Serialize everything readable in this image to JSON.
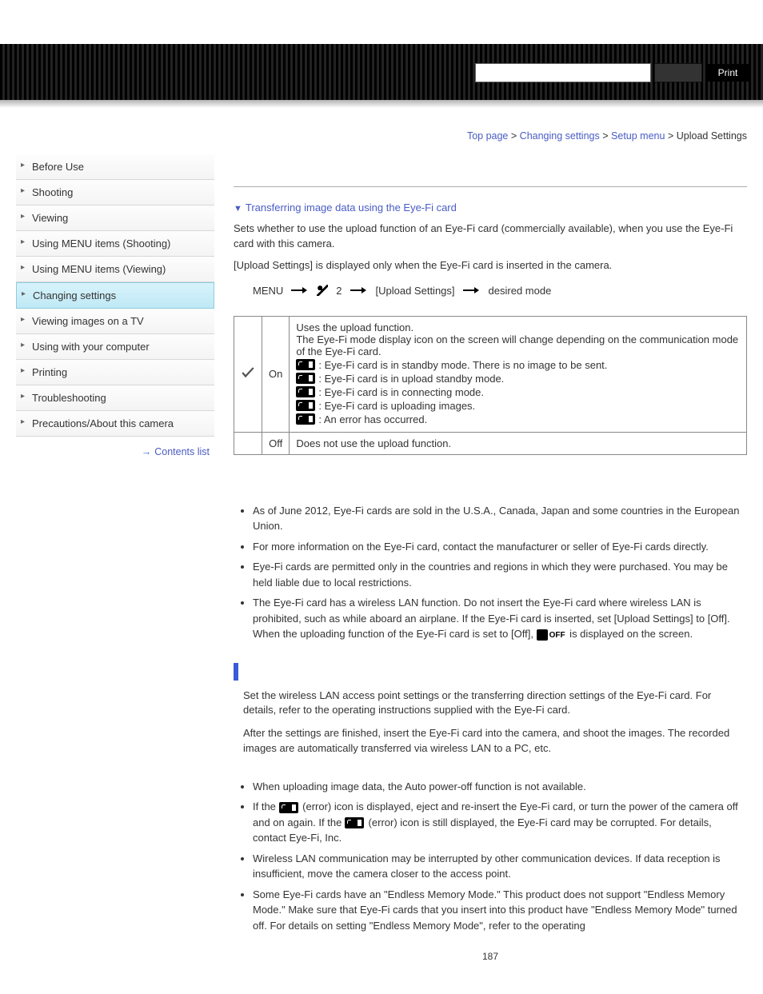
{
  "header": {
    "print_label": "Print"
  },
  "breadcrumb": {
    "top": "Top page",
    "l1": "Changing settings",
    "l2": "Setup menu",
    "cur": "Upload Settings",
    "sep": ">"
  },
  "sidebar": {
    "items": [
      {
        "label": "Before Use"
      },
      {
        "label": "Shooting"
      },
      {
        "label": "Viewing"
      },
      {
        "label": "Using MENU items (Shooting)"
      },
      {
        "label": "Using MENU items (Viewing)"
      },
      {
        "label": "Changing settings"
      },
      {
        "label": "Viewing images on a TV"
      },
      {
        "label": "Using with your computer"
      },
      {
        "label": "Printing"
      },
      {
        "label": "Troubleshooting"
      },
      {
        "label": "Precautions/About this camera"
      }
    ],
    "active_index": 5,
    "contents_link": "Contents list"
  },
  "content": {
    "link1": "Transferring image data using the Eye-Fi card",
    "p1": "Sets whether to use the upload function of an Eye-Fi card (commercially available), when you use the Eye-Fi card with this camera.",
    "p2": "[Upload Settings] is displayed only when the Eye-Fi card is inserted in the camera.",
    "menu_path": {
      "menu": "MENU",
      "setup_num": "2",
      "item": "[Upload Settings]",
      "target": "desired mode"
    },
    "table": {
      "on_label": "On",
      "off_label": "Off",
      "on_l1": "Uses the upload function.",
      "on_l2": "The Eye-Fi mode display icon on the screen will change depending on the communication mode of the Eye-Fi card.",
      "on_b1": ": Eye-Fi card is in standby mode. There is no image to be sent.",
      "on_b2": ": Eye-Fi card is in upload standby mode.",
      "on_b3": ": Eye-Fi card is in connecting mode.",
      "on_b4": ": Eye-Fi card is uploading images.",
      "on_b5": ": An error has occurred.",
      "off_desc": "Does not use the upload function."
    },
    "notes1": [
      "As of June 2012, Eye-Fi cards are sold in the U.S.A., Canada, Japan and some countries in the European Union.",
      "For more information on the Eye-Fi card, contact the manufacturer or seller of Eye-Fi cards directly.",
      "Eye-Fi cards are permitted only in the countries and regions in which they were purchased. You may be held liable due to local restrictions."
    ],
    "notes1_last_a": "The Eye-Fi card has a wireless LAN function. Do not insert the Eye-Fi card where wireless LAN is prohibited, such as while aboard an airplane. If the Eye-Fi card is inserted, set [Upload Settings] to [Off]. When the uploading function of the Eye-Fi card is set to [Off], ",
    "notes1_last_b": " is displayed on the screen.",
    "transfer_p1": "Set the wireless LAN access point settings or the transferring direction settings of the Eye-Fi card. For details, refer to the operating instructions supplied with the Eye-Fi card.",
    "transfer_p2": "After the settings are finished, insert the Eye-Fi card into the camera, and shoot the images. The recorded images are automatically transferred via wireless LAN to a PC, etc.",
    "notes2_first": "When uploading image data, the Auto power-off function is not available.",
    "notes2_err_a": "If the ",
    "notes2_err_b": " (error) icon is displayed, eject and re-insert the Eye-Fi card, or turn the power of the camera off and on again. If the ",
    "notes2_err_c": " (error) icon is still displayed, the Eye-Fi card may be corrupted. For details, contact Eye-Fi, Inc.",
    "notes2_rest": [
      "Wireless LAN communication may be interrupted by other communication devices. If data reception is insufficient, move the camera closer to the access point.",
      "Some Eye-Fi cards have an \"Endless Memory Mode.\" This product does not support \"Endless Memory Mode.\" Make sure that Eye-Fi cards that you insert into this product have \"Endless Memory Mode\" turned off. For details on setting \"Endless Memory Mode\", refer to the operating"
    ]
  },
  "page_number": "187"
}
